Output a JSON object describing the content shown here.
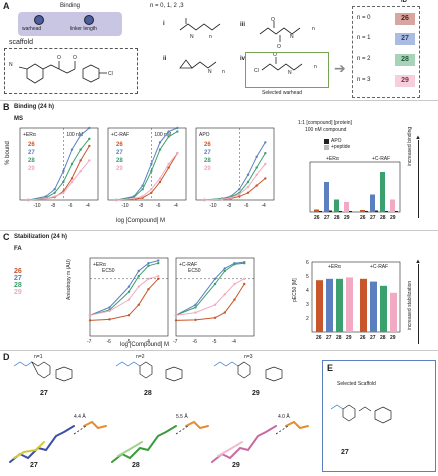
{
  "panelA": {
    "letter": "A",
    "binding_label": "Binding",
    "warhead_label": "warhead",
    "linker_label": "linker length",
    "scaffold_label": "scaffold",
    "n_values_label": "n = 0, 1, 2 ,3",
    "warhead_options": [
      "i",
      "ii",
      "iii",
      "iv"
    ],
    "n_label": "n",
    "selected_label": "Selected warhead",
    "id_header": "ID",
    "ids": [
      {
        "n": "n = 0",
        "id": "26",
        "color": "#c8562a"
      },
      {
        "n": "n = 1",
        "id": "27",
        "color": "#5b7fbf"
      },
      {
        "n": "n = 2",
        "id": "28",
        "color": "#3aa06e"
      },
      {
        "n": "n = 3",
        "id": "29",
        "color": "#f2a9c2"
      }
    ]
  },
  "panelB": {
    "letter": "B",
    "title": "Binding (24 h)",
    "method": "MS",
    "ylabel": "% bound",
    "xlabel": "log [Compound] M",
    "concentration_marker": "100 nM",
    "plots": [
      {
        "label": "+ERα",
        "marker": "100 nM"
      },
      {
        "label": "+C-RAF",
        "marker": "100 nM"
      },
      {
        "label": "APO",
        "marker": ""
      }
    ],
    "compounds": [
      "26",
      "27",
      "28",
      "29"
    ],
    "x_ticks": [
      "-12",
      "-10",
      "-8",
      "-6",
      "-4",
      "-10",
      "-8",
      "-6",
      "-4",
      "-10",
      "-8",
      "-6",
      "-4"
    ],
    "bar_title": "1:1 [compound] [protein]",
    "bar_subtitle": "100 nM compound",
    "legend": [
      "APO",
      "+peptide"
    ],
    "groups": [
      "+ERα",
      "+C-RAF"
    ],
    "arrow_label": "increased binding"
  },
  "panelC": {
    "letter": "C",
    "title": "Stabilization (24 h)",
    "method": "FA",
    "ylabel": "Anisotropy m (AU)",
    "xlabel": "log [Compound] M",
    "ec50_label": "EC50",
    "bar_ylabel": "pEC50 [M]",
    "groups": [
      "+ERα",
      "+C-RAF"
    ],
    "arrow_label": "increased stabilization",
    "compounds": [
      "26",
      "27",
      "28",
      "29"
    ]
  },
  "panelD": {
    "letter": "D",
    "structures": [
      {
        "n": "n=1",
        "id": "27",
        "dist": "4.4 Å"
      },
      {
        "n": "n=2",
        "id": "28",
        "dist": "5.5 Å"
      },
      {
        "n": "n=3",
        "id": "29",
        "dist": "4.0 Å"
      }
    ]
  },
  "panelE": {
    "letter": "E",
    "title": "Selected Scaffold",
    "id": "27"
  },
  "chart_data": [
    {
      "type": "line",
      "title": "+ERα",
      "xlabel": "log [Compound] M",
      "ylabel": "% bound",
      "xlim": [
        -12,
        -3
      ],
      "ylim": [
        0,
        100
      ],
      "series": [
        {
          "name": "26",
          "x": [
            -11,
            -9,
            -8,
            -7,
            -6,
            -5,
            -4
          ],
          "y": [
            0,
            2,
            4,
            12,
            30,
            55,
            75
          ]
        },
        {
          "name": "27",
          "x": [
            -11,
            -9,
            -8,
            -7,
            -6,
            -5,
            -4
          ],
          "y": [
            0,
            5,
            15,
            40,
            70,
            90,
            100
          ]
        },
        {
          "name": "28",
          "x": [
            -11,
            -9,
            -8,
            -7,
            -6,
            -5,
            -4
          ],
          "y": [
            0,
            3,
            10,
            25,
            50,
            70,
            85
          ]
        },
        {
          "name": "29",
          "x": [
            -11,
            -9,
            -8,
            -7,
            -6,
            -5,
            -4
          ],
          "y": [
            0,
            2,
            5,
            10,
            25,
            40,
            55
          ]
        }
      ]
    },
    {
      "type": "line",
      "title": "+C-RAF",
      "xlabel": "log [Compound] M",
      "ylabel": "% bound",
      "xlim": [
        -12,
        -3
      ],
      "ylim": [
        0,
        100
      ],
      "series": [
        {
          "name": "26",
          "x": [
            -11,
            -9,
            -8,
            -7,
            -6,
            -5,
            -4
          ],
          "y": [
            0,
            1,
            3,
            10,
            25,
            45,
            65
          ]
        },
        {
          "name": "27",
          "x": [
            -11,
            -9,
            -8,
            -7,
            -6,
            -5,
            -4
          ],
          "y": [
            0,
            5,
            20,
            50,
            80,
            95,
            100
          ]
        },
        {
          "name": "28",
          "x": [
            -11,
            -9,
            -8,
            -7,
            -6,
            -5,
            -4
          ],
          "y": [
            0,
            4,
            15,
            40,
            70,
            88,
            95
          ]
        },
        {
          "name": "29",
          "x": [
            -11,
            -9,
            -8,
            -7,
            -6,
            -5,
            -4
          ],
          "y": [
            0,
            2,
            5,
            15,
            30,
            50,
            65
          ]
        }
      ]
    },
    {
      "type": "line",
      "title": "APO",
      "xlabel": "log [Compound] M",
      "ylabel": "% bound",
      "xlim": [
        -12,
        -3
      ],
      "ylim": [
        0,
        100
      ],
      "series": [
        {
          "name": "26",
          "x": [
            -11,
            -9,
            -8,
            -7,
            -6,
            -5,
            -4
          ],
          "y": [
            0,
            1,
            2,
            5,
            10,
            20,
            30
          ]
        },
        {
          "name": "27",
          "x": [
            -11,
            -9,
            -8,
            -7,
            -6,
            -5,
            -4
          ],
          "y": [
            0,
            2,
            5,
            15,
            35,
            60,
            80
          ]
        },
        {
          "name": "28",
          "x": [
            -11,
            -9,
            -8,
            -7,
            -6,
            -5,
            -4
          ],
          "y": [
            0,
            2,
            4,
            10,
            25,
            45,
            65
          ]
        },
        {
          "name": "29",
          "x": [
            -11,
            -9,
            -8,
            -7,
            -6,
            -5,
            -4
          ],
          "y": [
            0,
            1,
            3,
            8,
            18,
            35,
            50
          ]
        }
      ]
    },
    {
      "type": "bar",
      "title": "1:1 [compound] [protein]",
      "ylabel": "% bound",
      "categories": [
        "26",
        "27",
        "28",
        "29"
      ],
      "ylim": [
        0,
        100
      ],
      "groups": [
        {
          "name": "+ERα",
          "series": [
            {
              "name": "APO",
              "values": [
                2,
                3,
                2,
                2
              ]
            },
            {
              "name": "+peptide",
              "values": [
                5,
                60,
                25,
                20
              ]
            }
          ]
        },
        {
          "name": "+C-RAF",
          "series": [
            {
              "name": "APO",
              "values": [
                2,
                3,
                2,
                2
              ]
            },
            {
              "name": "+peptide",
              "values": [
                4,
                35,
                80,
                25
              ]
            }
          ]
        }
      ]
    },
    {
      "type": "line",
      "title": "+ERα",
      "xlabel": "log [Compound] M",
      "ylabel": "Anisotropy m (AU)",
      "xlim": [
        -7,
        -3
      ],
      "ylim": [
        0,
        150
      ],
      "series": [
        {
          "name": "26",
          "x": [
            -7,
            -6,
            -5,
            -4.5,
            -4,
            -3.5
          ],
          "y": [
            30,
            32,
            40,
            60,
            90,
            110
          ]
        },
        {
          "name": "27",
          "x": [
            -7,
            -6,
            -5,
            -4.5,
            -4,
            -3.5
          ],
          "y": [
            40,
            55,
            95,
            125,
            140,
            145
          ]
        },
        {
          "name": "28",
          "x": [
            -7,
            -6,
            -5,
            -4.5,
            -4,
            -3.5
          ],
          "y": [
            40,
            50,
            85,
            115,
            135,
            140
          ]
        },
        {
          "name": "29",
          "x": [
            -7,
            -6,
            -5,
            -4.5,
            -4,
            -3.5
          ],
          "y": [
            40,
            48,
            70,
            95,
            110,
            115
          ]
        }
      ]
    },
    {
      "type": "line",
      "title": "+C-RAF",
      "xlabel": "log [Compound] M",
      "ylabel": "Anisotropy m (AU)",
      "xlim": [
        -7,
        -3
      ],
      "ylim": [
        0,
        150
      ],
      "series": [
        {
          "name": "26",
          "x": [
            -7,
            -6,
            -5,
            -4.5,
            -4,
            -3.5
          ],
          "y": [
            30,
            31,
            35,
            45,
            70,
            100
          ]
        },
        {
          "name": "27",
          "x": [
            -7,
            -6,
            -5,
            -4.5,
            -4,
            -3.5
          ],
          "y": [
            40,
            60,
            110,
            130,
            140,
            142
          ]
        },
        {
          "name": "28",
          "x": [
            -7,
            -6,
            -5,
            -4.5,
            -4,
            -3.5
          ],
          "y": [
            40,
            55,
            100,
            125,
            138,
            140
          ]
        },
        {
          "name": "29",
          "x": [
            -7,
            -6,
            -5,
            -4.5,
            -4,
            -3.5
          ],
          "y": [
            40,
            45,
            60,
            80,
            100,
            110
          ]
        }
      ]
    },
    {
      "type": "bar",
      "ylabel": "pEC50 [M]",
      "categories": [
        "26",
        "27",
        "28",
        "29"
      ],
      "ylim": [
        1,
        6
      ],
      "groups": [
        {
          "name": "+ERα",
          "values": [
            4.7,
            4.8,
            4.8,
            4.9
          ]
        },
        {
          "name": "+C-RAF",
          "values": [
            4.8,
            4.6,
            4.3,
            3.8
          ]
        }
      ]
    }
  ]
}
